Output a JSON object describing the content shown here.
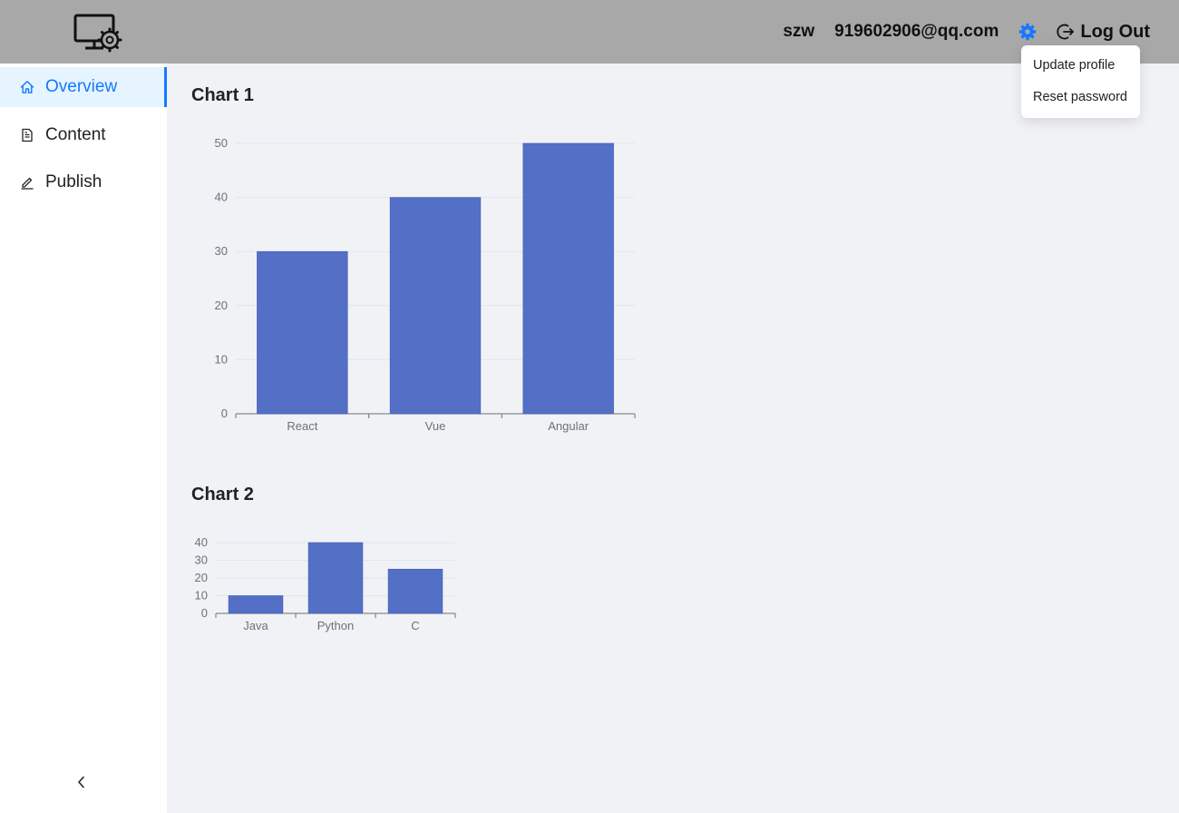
{
  "header": {
    "username": "szw",
    "email": "919602906@qq.com",
    "logout_label": "Log Out",
    "settings_icon": "gear-icon",
    "logo_icon": "monitor-gear-icon",
    "accent_color": "#1677ff"
  },
  "dropdown": {
    "items": [
      {
        "label": "Update profile"
      },
      {
        "label": "Reset password"
      }
    ]
  },
  "sidebar": {
    "items": [
      {
        "label": "Overview",
        "icon": "home-icon",
        "active": true
      },
      {
        "label": "Content",
        "icon": "document-icon",
        "active": false
      },
      {
        "label": "Publish",
        "icon": "edit-icon",
        "active": false
      }
    ],
    "collapse_icon": "chevron-left-icon"
  },
  "charts": {
    "chart1_title": "Chart 1",
    "chart2_title": "Chart 2"
  },
  "chart_data": [
    {
      "type": "bar",
      "title": "Chart 1",
      "categories": [
        "React",
        "Vue",
        "Angular"
      ],
      "values": [
        30,
        40,
        50
      ],
      "ylim": [
        0,
        50
      ],
      "yticks": [
        0,
        10,
        20,
        30,
        40,
        50
      ],
      "color": "#5470c6",
      "grid": true
    },
    {
      "type": "bar",
      "title": "Chart 2",
      "categories": [
        "Java",
        "Python",
        "C"
      ],
      "values": [
        10,
        40,
        25
      ],
      "ylim": [
        0,
        40
      ],
      "yticks": [
        0,
        10,
        20,
        30,
        40
      ],
      "color": "#5470c6",
      "grid": true
    }
  ]
}
